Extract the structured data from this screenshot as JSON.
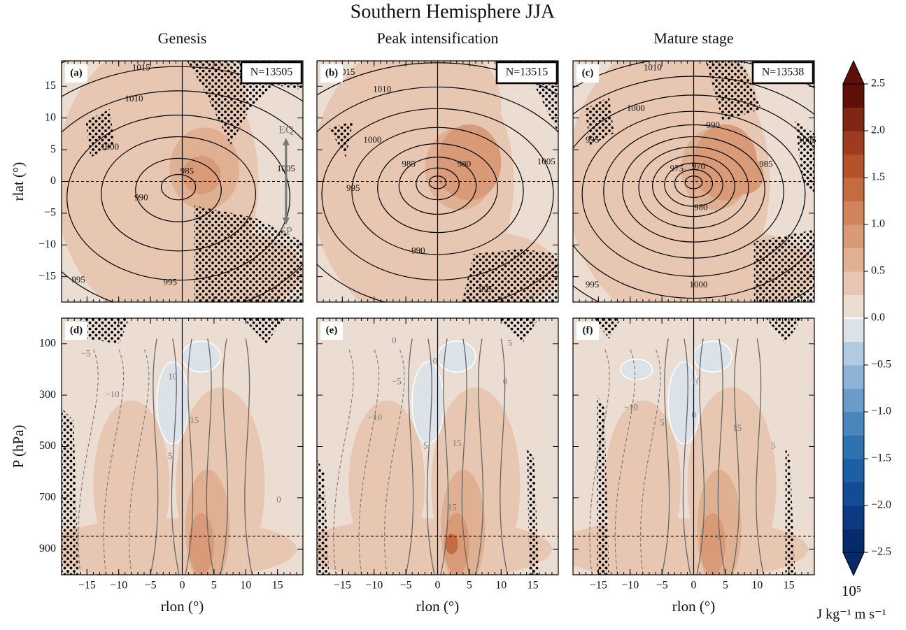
{
  "figure": {
    "title": "Southern Hemisphere JJA"
  },
  "chart_data": [
    {
      "type": "contour",
      "title": "Genesis",
      "panel_label": "(a)",
      "annotation": "N=13505",
      "ylabel": "rlat (°)",
      "xlim": [
        -19,
        19
      ],
      "ylim": [
        -19,
        19
      ],
      "xticks": [
        -15,
        -10,
        -5,
        0,
        5,
        10,
        15
      ],
      "yticks": [
        {
          "value": -15,
          "label": "−15"
        },
        {
          "value": -10,
          "label": "−10"
        },
        {
          "value": -5,
          "label": "−5"
        },
        0,
        5,
        10,
        15
      ],
      "contour_labels": [
        "1015",
        "1010",
        "1000",
        "990",
        "985",
        "1005",
        "995",
        "995"
      ],
      "arrow_labels": [
        "EQ",
        "SP"
      ]
    },
    {
      "type": "contour",
      "title": "Peak intensification",
      "panel_label": "(b)",
      "annotation": "N=13515",
      "xlim": [
        -19,
        19
      ],
      "ylim": [
        -19,
        19
      ],
      "xticks": [
        -15,
        -10,
        -5,
        0,
        5,
        10,
        15
      ],
      "yticks": [
        -15,
        -10,
        -5,
        0,
        5,
        10,
        15
      ],
      "contour_labels": [
        "1015",
        "1010",
        "1000",
        "995",
        "985",
        "980",
        "1005",
        "990",
        "995"
      ]
    },
    {
      "type": "contour",
      "title": "Mature stage",
      "panel_label": "(c)",
      "annotation": "N=13538",
      "xlim": [
        -19,
        19
      ],
      "ylim": [
        -19,
        19
      ],
      "xticks": [
        -15,
        -10,
        -5,
        0,
        5,
        10,
        15
      ],
      "yticks": [
        -15,
        -10,
        -5,
        0,
        5,
        10,
        15
      ],
      "contour_labels": [
        "1010",
        "1000",
        "990",
        "995",
        "975",
        "970",
        "980",
        "985",
        "1005",
        "995",
        "1000"
      ]
    },
    {
      "type": "section",
      "panel_label": "(d)",
      "xlabel": "rlon (°)",
      "ylabel": "P (hPa)",
      "xlim": [
        -19,
        19
      ],
      "ylim": [
        1000,
        0
      ],
      "xticks": [
        {
          "value": -15,
          "label": "−15"
        },
        {
          "value": -10,
          "label": "−10"
        },
        {
          "value": -5,
          "label": "−5"
        },
        0,
        5,
        10,
        15
      ],
      "yticks": [
        100,
        300,
        500,
        700,
        900
      ],
      "contour_labels": [
        "−5",
        "−10",
        "10",
        "15",
        "5",
        "0"
      ]
    },
    {
      "type": "section",
      "panel_label": "(e)",
      "xlabel": "rlon (°)",
      "xlim": [
        -19,
        19
      ],
      "ylim": [
        1000,
        0
      ],
      "xticks": [
        {
          "value": -15,
          "label": "−15"
        },
        {
          "value": -10,
          "label": "−10"
        },
        {
          "value": -5,
          "label": "−5"
        },
        0,
        5,
        10,
        15
      ],
      "yticks": [
        100,
        300,
        500,
        700,
        900
      ],
      "contour_labels": [
        "0",
        "−5",
        "10",
        "5",
        "−10",
        "5",
        "15",
        "15",
        "0"
      ]
    },
    {
      "type": "section",
      "panel_label": "(f)",
      "xlabel": "rlon (°)",
      "xlim": [
        -19,
        19
      ],
      "ylim": [
        1000,
        0
      ],
      "xticks": [
        {
          "value": -15,
          "label": "−15"
        },
        {
          "value": -10,
          "label": "−10"
        },
        {
          "value": -5,
          "label": "−5"
        },
        0,
        5,
        10,
        15
      ],
      "yticks": [
        100,
        300,
        500,
        700,
        900
      ],
      "contour_labels": [
        "10",
        "−10",
        "5",
        "0",
        "15",
        "5"
      ]
    }
  ],
  "colorbar": {
    "lim": [
      -2.5,
      2.5
    ],
    "ticks": [
      2.5,
      {
        "value": 2,
        "label": "2.0"
      },
      1.5,
      {
        "value": 1,
        "label": "1.0"
      },
      0.5,
      {
        "value": 0,
        "label": "0.0"
      },
      {
        "value": -0.5,
        "label": "−0.5"
      },
      {
        "value": -1,
        "label": "−1.0"
      },
      {
        "value": -1.5,
        "label": "−1.5"
      },
      {
        "value": -2,
        "label": "−2.0"
      },
      {
        "value": -2.5,
        "label": "−2.5"
      }
    ],
    "colors": [
      "#072a6b",
      "#0b3a82",
      "#134c94",
      "#1d5fa3",
      "#2f72b0",
      "#4a86bc",
      "#6a9cc9",
      "#8db4d6",
      "#b0cbe2",
      "#dbe2e8",
      "#ecddd3",
      "#e8c7b2",
      "#e0b093",
      "#d89a77",
      "#cf845c",
      "#c46b41",
      "#b4532b",
      "#9c3b1d",
      "#7f2614",
      "#5e1008"
    ],
    "unit_scale": "10⁵",
    "unit": "J kg⁻¹ m s⁻¹"
  }
}
